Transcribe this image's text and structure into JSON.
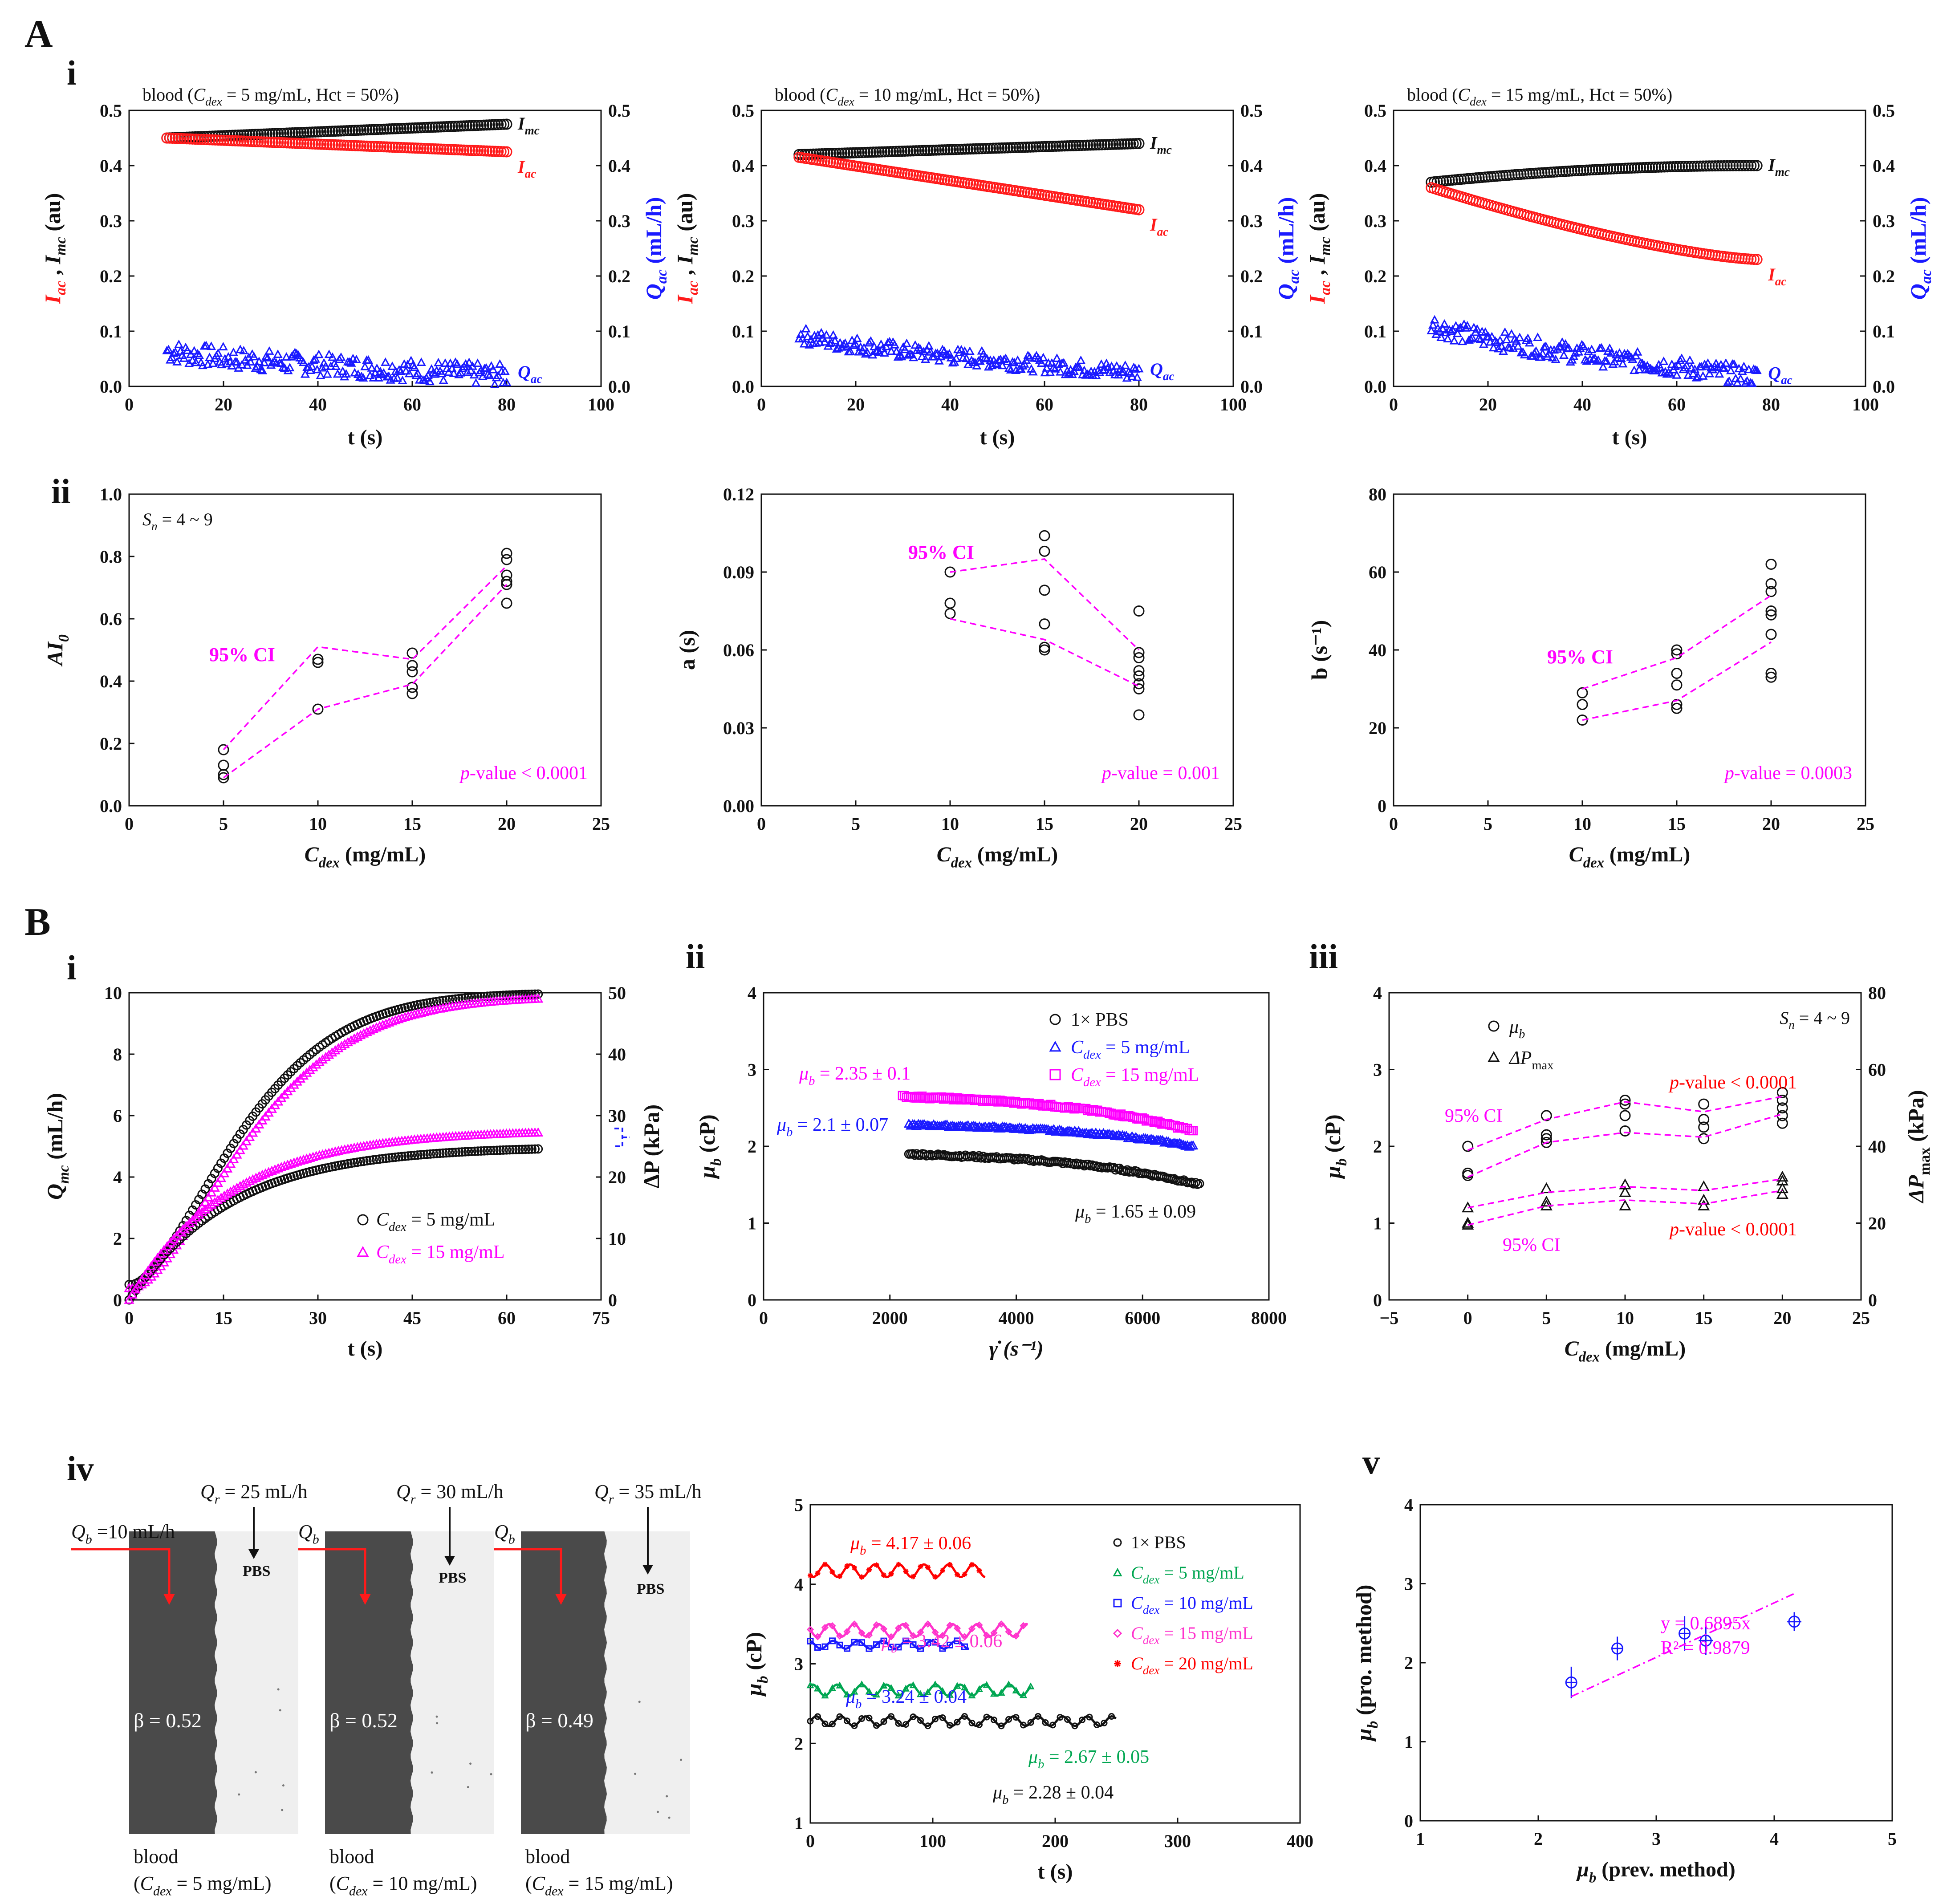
{
  "figure": {
    "labels": {
      "A": "A",
      "B": "B",
      "Ai": "i",
      "Aii": "ii",
      "Bi": "i",
      "Bii": "ii",
      "Biii": "iii",
      "Biv": "iv",
      "Bv": "v"
    }
  },
  "colors": {
    "black": "#111111",
    "red": "#ff1a1a",
    "blue": "#1a1aff",
    "magenta": "#ff00ff",
    "green": "#00a651",
    "pink": "#ff33cc",
    "darkred": "#ff0000"
  },
  "chart_data": [
    {
      "id": "Ai-1",
      "type": "scatter",
      "title": "blood (C_dex = 5 mg/mL, Hct = 50%)",
      "xlabel": "t (s)",
      "ylabel": "I_ac , I_mc (au)",
      "y2label": "Q_ac (mL/h)",
      "xlim": [
        0,
        100
      ],
      "ylim": [
        0,
        0.5
      ],
      "y2lim": [
        0,
        0.5
      ],
      "xticks": [
        0,
        20,
        40,
        60,
        80,
        100
      ],
      "yticks": [
        0,
        0.1,
        0.2,
        0.3,
        0.4,
        0.5
      ],
      "series": [
        {
          "name": "I_mc",
          "color": "#111111",
          "marker": "circle",
          "x": [
            8,
            80
          ],
          "y": [
            0.45,
            0.475
          ],
          "n": 120
        },
        {
          "name": "I_ac",
          "color": "#ff1a1a",
          "marker": "circle",
          "x": [
            8,
            80
          ],
          "y": [
            0.45,
            0.425
          ],
          "n": 120
        },
        {
          "name": "Q_ac",
          "color": "#1a1aff",
          "marker": "triangle",
          "x": [
            8,
            80
          ],
          "y": [
            0.065,
            0.02
          ],
          "noise": 0.02,
          "n": 200
        }
      ]
    },
    {
      "id": "Ai-2",
      "type": "scatter",
      "title": "blood (C_dex = 10 mg/mL, Hct = 50%)",
      "xlabel": "t (s)",
      "ylabel": "I_ac , I_mc (au)",
      "y2label": "Q_ac (mL/h)",
      "xlim": [
        0,
        100
      ],
      "ylim": [
        0,
        0.5
      ],
      "y2lim": [
        0,
        0.5
      ],
      "series": [
        {
          "name": "I_mc",
          "color": "#111111",
          "marker": "circle",
          "x": [
            8,
            80
          ],
          "y": [
            0.42,
            0.44
          ],
          "n": 120
        },
        {
          "name": "I_ac",
          "color": "#ff1a1a",
          "marker": "circle",
          "x": [
            8,
            80
          ],
          "y": [
            0.415,
            0.32
          ],
          "n": 120
        },
        {
          "name": "Q_ac",
          "color": "#1a1aff",
          "marker": "triangle",
          "x": [
            8,
            80
          ],
          "y": [
            0.095,
            0.025
          ],
          "noise": 0.015,
          "n": 200
        }
      ]
    },
    {
      "id": "Ai-3",
      "type": "scatter",
      "title": "blood (C_dex = 15 mg/mL, Hct = 50%)",
      "xlabel": "t (s)",
      "ylabel": "I_ac , I_mc (au)",
      "y2label": "Q_ac (mL/h)",
      "xlim": [
        0,
        100
      ],
      "ylim": [
        0,
        0.5
      ],
      "y2lim": [
        0,
        0.5
      ],
      "series": [
        {
          "name": "I_mc",
          "color": "#111111",
          "marker": "circle",
          "x": [
            8,
            77
          ],
          "y": [
            0.37,
            0.4
          ],
          "n": 110
        },
        {
          "name": "I_ac",
          "color": "#ff1a1a",
          "marker": "circle",
          "x": [
            8,
            77
          ],
          "y": [
            0.36,
            0.23
          ],
          "n": 110
        },
        {
          "name": "Q_ac",
          "color": "#1a1aff",
          "marker": "triangle",
          "x": [
            8,
            77
          ],
          "y": [
            0.115,
            0.018
          ],
          "noise": 0.018,
          "n": 200
        }
      ]
    },
    {
      "id": "Aii-1",
      "type": "scatter",
      "xlabel": "C_dex (mg/mL)",
      "ylabel": "AI_0",
      "xlim": [
        0,
        25
      ],
      "ylim": [
        0,
        1.0
      ],
      "annotation_sn": "S_n = 4 ~ 9",
      "ci_label": "95% CI",
      "pvalue": "p-value < 0.0001",
      "points": {
        "x": [
          5,
          5,
          5,
          5,
          10,
          10,
          10,
          15,
          15,
          15,
          15,
          15,
          20,
          20,
          20,
          20,
          20,
          20
        ],
        "y": [
          0.18,
          0.13,
          0.1,
          0.09,
          0.47,
          0.46,
          0.31,
          0.49,
          0.45,
          0.43,
          0.38,
          0.36,
          0.81,
          0.79,
          0.74,
          0.72,
          0.71,
          0.65
        ]
      },
      "ci_upper": {
        "x": [
          5,
          10,
          15,
          20
        ],
        "y": [
          0.18,
          0.51,
          0.47,
          0.77
        ]
      },
      "ci_lower": {
        "x": [
          5,
          10,
          15,
          20
        ],
        "y": [
          0.09,
          0.31,
          0.39,
          0.71
        ]
      }
    },
    {
      "id": "Aii-2",
      "type": "scatter",
      "xlabel": "C_dex (mg/mL)",
      "ylabel": "a (s)",
      "xlim": [
        0,
        25
      ],
      "ylim": [
        0,
        0.12
      ],
      "ci_label": "95% CI",
      "pvalue": "p-value = 0.001",
      "points": {
        "x": [
          10,
          10,
          10,
          15,
          15,
          15,
          15,
          15,
          15,
          20,
          20,
          20,
          20,
          20,
          20,
          20,
          20
        ],
        "y": [
          0.09,
          0.078,
          0.074,
          0.104,
          0.098,
          0.083,
          0.07,
          0.061,
          0.06,
          0.075,
          0.059,
          0.057,
          0.052,
          0.05,
          0.047,
          0.045,
          0.035
        ]
      },
      "ci_upper": {
        "x": [
          10,
          15,
          20
        ],
        "y": [
          0.09,
          0.095,
          0.06
        ]
      },
      "ci_lower": {
        "x": [
          10,
          15,
          20
        ],
        "y": [
          0.072,
          0.064,
          0.046
        ]
      }
    },
    {
      "id": "Aii-3",
      "type": "scatter",
      "xlabel": "C_dex (mg/mL)",
      "ylabel": "b (s⁻¹)",
      "xlim": [
        0,
        25
      ],
      "ylim": [
        0,
        80
      ],
      "ci_label": "95% CI",
      "pvalue": "p-value = 0.0003",
      "points": {
        "x": [
          10,
          10,
          10,
          15,
          15,
          15,
          15,
          15,
          15,
          20,
          20,
          20,
          20,
          20,
          20,
          20,
          20
        ],
        "y": [
          29,
          26,
          22,
          40,
          39,
          34,
          31,
          26,
          25,
          62,
          57,
          55,
          50,
          49,
          44,
          34,
          33
        ]
      },
      "ci_upper": {
        "x": [
          10,
          15,
          20
        ],
        "y": [
          30,
          38,
          54
        ]
      },
      "ci_lower": {
        "x": [
          10,
          15,
          20
        ],
        "y": [
          22,
          27,
          42
        ]
      }
    },
    {
      "id": "Bi",
      "type": "scatter",
      "xlabel": "t (s)",
      "ylabel": "Q_mc (mL/h)",
      "y2label": "ΔP (kPa)",
      "xlim": [
        0,
        75
      ],
      "ylim": [
        0,
        10
      ],
      "y2lim": [
        0,
        50
      ],
      "legend": [
        "C_dex = 5 mg/mL",
        "C_dex = 15 mg/mL"
      ],
      "series": [
        {
          "name": "C_dex = 5 mg/mL",
          "color": "#111111",
          "marker": "circle",
          "axis": "left",
          "curve": "Q",
          "tmax": 65
        },
        {
          "name": "C_dex = 15 mg/mL",
          "color": "#ff00ff",
          "marker": "triangle",
          "axis": "left",
          "curve": "Q",
          "tmax": 65
        },
        {
          "name": "C_dex = 5 mg/mL",
          "color": "#111111",
          "marker": "circle",
          "axis": "right",
          "curve": "P",
          "plateau": 25,
          "tmax": 65
        },
        {
          "name": "C_dex = 15 mg/mL",
          "color": "#ff00ff",
          "marker": "triangle",
          "axis": "right",
          "curve": "P",
          "plateau": 27.7,
          "tmax": 65
        }
      ]
    },
    {
      "id": "Bii",
      "type": "scatter",
      "xlabel": "γ̇ (s⁻¹)",
      "ylabel": "μ_b (cP)",
      "xlim": [
        0,
        8000
      ],
      "ylim": [
        0,
        4
      ],
      "legend": [
        "1× PBS",
        "C_dex = 5 mg/mL",
        "C_dex = 15 mg/mL"
      ],
      "annotations": [
        "μ_b = 2.35 ± 0.1",
        "μ_b = 2.1 ± 0.07",
        "μ_b = 1.65 ± 0.09"
      ],
      "series": [
        {
          "name": "1× PBS",
          "color": "#111111",
          "marker": "circle",
          "x": [
            2300,
            6900
          ],
          "y": [
            1.9,
            1.5
          ]
        },
        {
          "name": "C_dex = 5 mg/mL",
          "color": "#1a1aff",
          "marker": "triangle",
          "x": [
            2300,
            6800
          ],
          "y": [
            2.28,
            2.0
          ]
        },
        {
          "name": "C_dex = 15 mg/mL",
          "color": "#ff00ff",
          "marker": "square",
          "x": [
            2200,
            6800
          ],
          "y": [
            2.65,
            2.2
          ]
        }
      ]
    },
    {
      "id": "Biii",
      "type": "scatter",
      "xlabel": "C_dex (mg/mL)",
      "ylabel": "μ_b (cP)",
      "y2label": "ΔP_max (kPa)",
      "xlim": [
        -5,
        25
      ],
      "ylim": [
        0,
        4
      ],
      "y2lim": [
        0,
        80
      ],
      "legend": [
        "μ_b",
        "ΔP_max"
      ],
      "annotation_sn": "S_n = 4 ~ 9",
      "ci_label_top": "95% CI",
      "ci_label_bottom": "95% CI",
      "pvalue_top": "p-value < 0.0001",
      "pvalue_bottom": "p-value < 0.0001",
      "mu_points": {
        "x": [
          0,
          0,
          0,
          5,
          5,
          5,
          5,
          10,
          10,
          10,
          10,
          15,
          15,
          15,
          15,
          20,
          20,
          20,
          20,
          20
        ],
        "y": [
          2.0,
          1.65,
          1.62,
          2.4,
          2.15,
          2.1,
          2.05,
          2.6,
          2.55,
          2.4,
          2.2,
          2.55,
          2.35,
          2.25,
          2.1,
          2.7,
          2.6,
          2.5,
          2.4,
          2.3
        ]
      },
      "mu_ci_upper": {
        "x": [
          0,
          5,
          10,
          15,
          20
        ],
        "y": [
          1.95,
          2.35,
          2.58,
          2.45,
          2.65
        ]
      },
      "mu_ci_lower": {
        "x": [
          0,
          5,
          10,
          15,
          20
        ],
        "y": [
          1.6,
          2.05,
          2.18,
          2.12,
          2.42
        ]
      },
      "dp_points": {
        "x": [
          0,
          0,
          0,
          5,
          5,
          5,
          10,
          10,
          10,
          15,
          15,
          15,
          20,
          20,
          20,
          20
        ],
        "y": [
          24,
          20,
          19.5,
          29,
          25.5,
          24.5,
          30,
          28,
          24.5,
          29.5,
          26,
          24.5,
          32,
          31,
          29,
          27.5
        ]
      },
      "dp_ci_upper": {
        "x": [
          0,
          5,
          10,
          15,
          20
        ],
        "y": [
          24,
          28,
          29.5,
          28.5,
          31.5
        ]
      },
      "dp_ci_lower": {
        "x": [
          0,
          5,
          10,
          15,
          20
        ],
        "y": [
          19.5,
          24.5,
          26,
          25,
          28.5
        ]
      }
    },
    {
      "id": "Biv-images",
      "type": "image-panels",
      "flow_labels": [
        "Q_r = 25 mL/h",
        "Q_r = 30 mL/h",
        "Q_r = 35 mL/h"
      ],
      "qb_labels": [
        "Q_b =10 mL/h",
        "Q_b",
        "Q_b"
      ],
      "beta": [
        "β = 0.52",
        "β = 0.52",
        "β = 0.49"
      ],
      "pbs": [
        "PBS",
        "PBS",
        "PBS"
      ],
      "blood": [
        "blood",
        "blood",
        "blood"
      ],
      "captions": [
        "(C_dex = 5 mg/mL)",
        "(C_dex = 10 mg/mL)",
        "(C_dex = 15 mg/mL)"
      ]
    },
    {
      "id": "Biv-chart",
      "type": "line",
      "xlabel": "t (s)",
      "ylabel": "μ_b (cP)",
      "xlim": [
        0,
        400
      ],
      "ylim": [
        1,
        5
      ],
      "legend": [
        "1× PBS",
        "C_dex = 5 mg/mL",
        "C_dex = 10 mg/mL",
        "C_dex = 15 mg/mL",
        "C_dex = 20 mg/mL"
      ],
      "annotations": [
        "μ_b = 4.17 ± 0.06",
        "μ_b = 3.42 ± 0.06",
        "μ_b = 3.24 ± 0.04",
        "μ_b = 2.67 ± 0.05",
        "μ_b = 2.28 ± 0.04"
      ],
      "series": [
        {
          "name": "1× PBS",
          "color": "#111111",
          "mean": 2.28,
          "amp": 0.06,
          "tmax": 250
        },
        {
          "name": "C_dex = 5 mg/mL",
          "color": "#00a651",
          "mean": 2.67,
          "amp": 0.07,
          "tmax": 180
        },
        {
          "name": "C_dex = 10 mg/mL",
          "color": "#1a1aff",
          "mean": 3.24,
          "amp": 0.05,
          "tmax": 130
        },
        {
          "name": "C_dex = 15 mg/mL",
          "color": "#ff33cc",
          "mean": 3.42,
          "amp": 0.08,
          "tmax": 178
        },
        {
          "name": "C_dex = 20 mg/mL",
          "color": "#ff0000",
          "mean": 4.17,
          "amp": 0.08,
          "tmax": 143
        }
      ]
    },
    {
      "id": "Bv",
      "type": "scatter",
      "xlabel": "μ_b (prev. method)",
      "ylabel": "μ_b (pro. method)",
      "xlim": [
        1,
        5
      ],
      "ylim": [
        0,
        4
      ],
      "fit_eq": "y = 0.6895x",
      "fit_r2": "R² = 0.9879",
      "points": {
        "x": [
          2.28,
          2.67,
          3.24,
          3.42,
          4.17
        ],
        "y": [
          1.75,
          2.18,
          2.37,
          2.28,
          2.52
        ],
        "xerr": [
          0.04,
          0.05,
          0.04,
          0.06,
          0.06
        ],
        "yerr": [
          0.2,
          0.15,
          0.22,
          0.18,
          0.12
        ]
      },
      "fit_range": [
        2.28,
        4.17
      ]
    }
  ]
}
